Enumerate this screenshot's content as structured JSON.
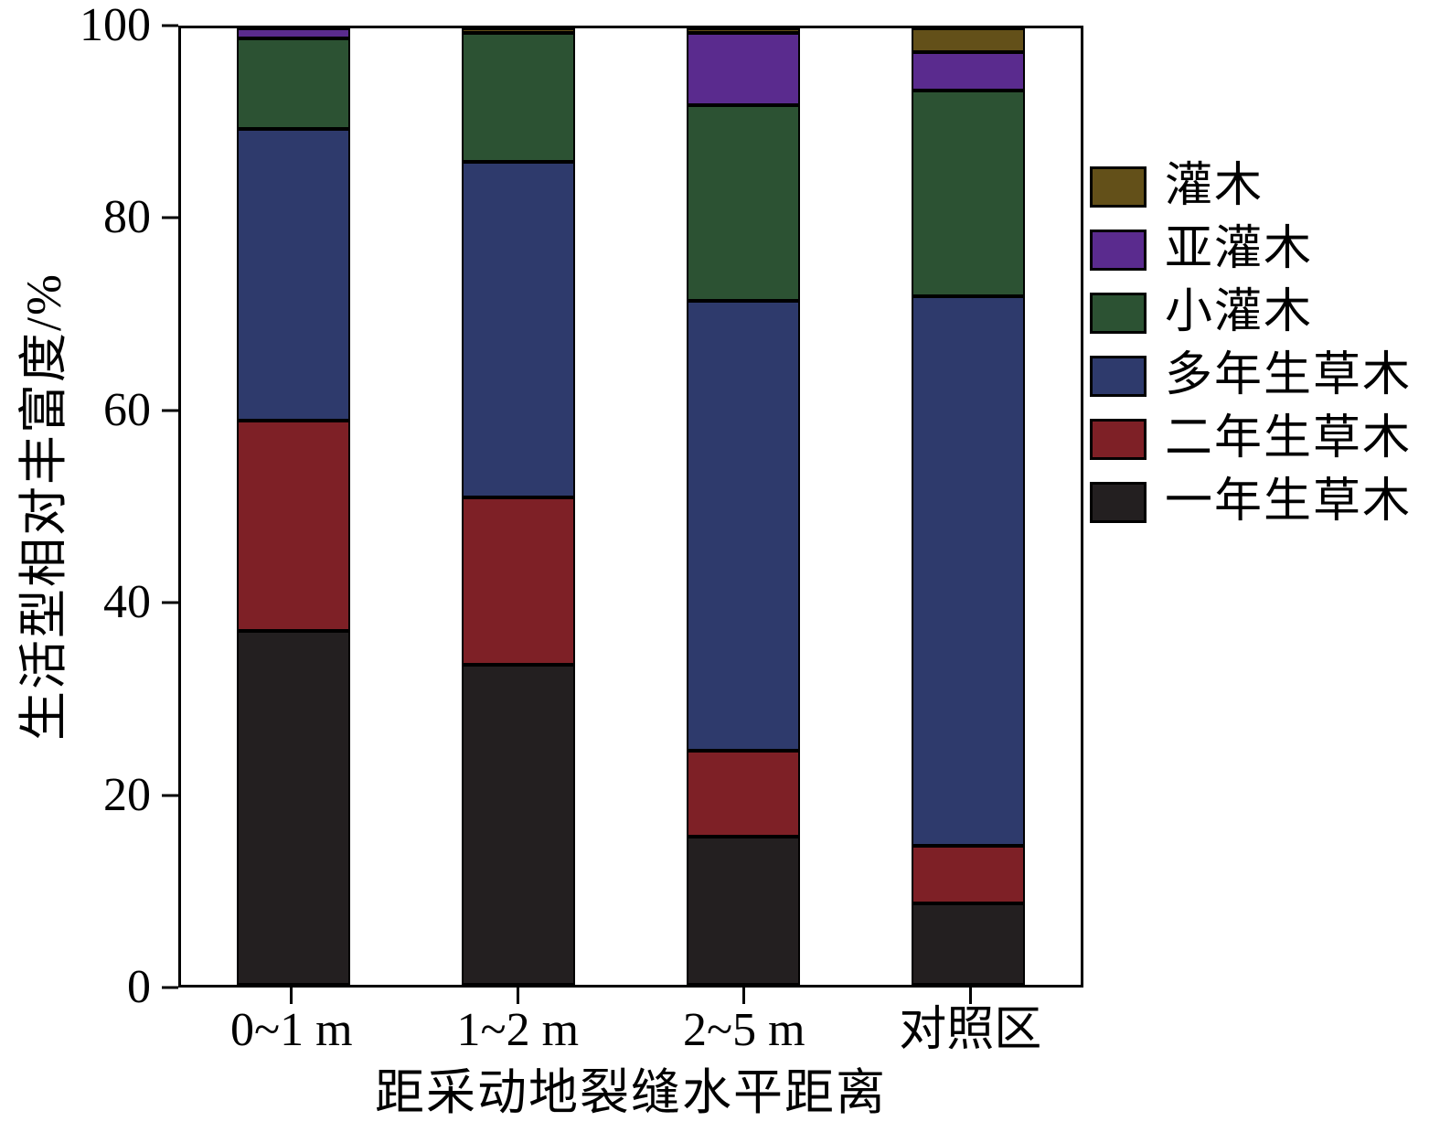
{
  "chart_data": {
    "type": "bar",
    "stacked": true,
    "title": "",
    "xlabel": "距采动地裂缝水平距离",
    "ylabel": "生活型相对丰富度/%",
    "ylim": [
      0,
      100
    ],
    "yticks": [
      0,
      20,
      40,
      60,
      80,
      100
    ],
    "grid": false,
    "legend_position": "right",
    "categories": [
      "0~1 m",
      "1~2 m",
      "2~5 m",
      "对照区"
    ],
    "series": [
      {
        "name": "一年生草木",
        "color": "#231f20",
        "values": [
          37,
          33.5,
          15.5,
          8.5
        ]
      },
      {
        "name": "二年生草木",
        "color": "#7e2026",
        "values": [
          22,
          17.5,
          9,
          6
        ]
      },
      {
        "name": "多年生草木",
        "color": "#2e3a6c",
        "values": [
          30.5,
          35,
          47,
          57.5
        ]
      },
      {
        "name": "小灌木",
        "color": "#2c5233",
        "values": [
          9.5,
          13.5,
          20.5,
          21.5
        ]
      },
      {
        "name": "亚灌木",
        "color": "#5a2b8e",
        "values": [
          1,
          0,
          7.5,
          4
        ]
      },
      {
        "name": "灌木",
        "color": "#635019",
        "values": [
          0,
          0.5,
          0.5,
          2.5
        ]
      }
    ]
  }
}
